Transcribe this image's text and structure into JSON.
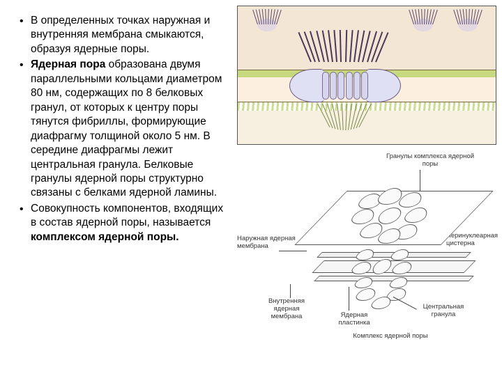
{
  "bullets": [
    {
      "pre": "В определенных точках наружная и внутренняя мембрана смыкаются, образуя ядерные поры."
    },
    {
      "boldLead": "Ядерная пора",
      "rest": " образована двумя параллельными кольцами диаметром 80 нм, содержащих по 8 белковых гранул, от которых к центру поры тянутся фибриллы, формирующие диафрагму толщиной около 5 нм. В середине диафрагмы лежит центральная гранула. Белковые гранулы ядерной поры структурно связаны с белками ядерной ламины."
    },
    {
      "pre": "Совокупность компонентов, входящих в состав ядерной поры, называется ",
      "boldTail": "комплексом ядерной поры."
    }
  ],
  "labels": {
    "granules": "Гранулы комплекса\nядерной поры",
    "outerMembrane": "Наружная ядерная\nмембрана",
    "perinuclear": "Перинуклеарная\nцистерна",
    "innerMembrane": "Внутренняя\nядерная\nмембрана",
    "lamina": "Ядерная\nпластинка",
    "centralGranule": "Центральная\nгранула",
    "complex": "Комплекс ядерной поры"
  },
  "colors": {
    "skin": "#f4e6d4",
    "green": "#c7d97f",
    "cream": "#fcefdf",
    "violet": "#d6d6ef"
  }
}
